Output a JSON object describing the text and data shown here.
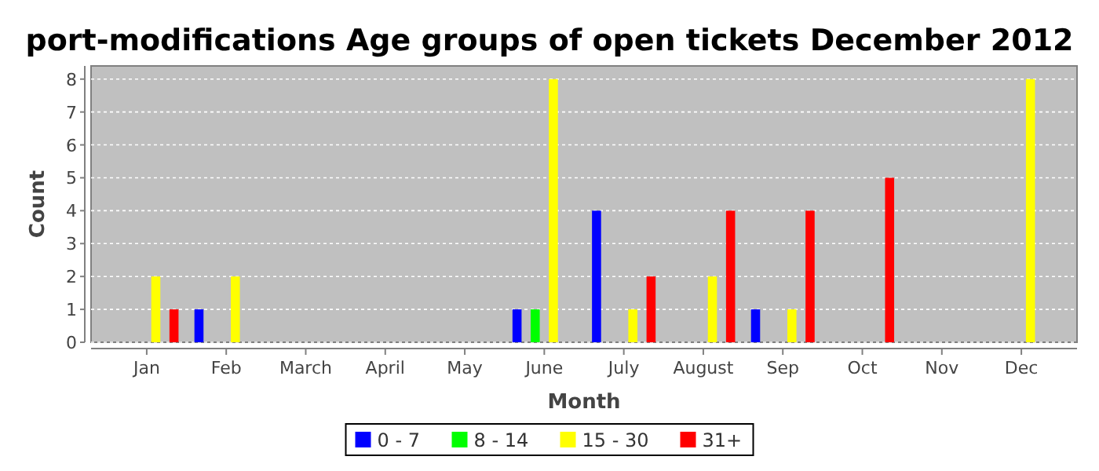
{
  "chart_data": {
    "type": "bar",
    "title": "port-modifications Age groups of open tickets December 2012",
    "xlabel": "Month",
    "ylabel": "Count",
    "categories": [
      "Jan",
      "Feb",
      "March",
      "April",
      "May",
      "June",
      "July",
      "August",
      "Sep",
      "Oct",
      "Nov",
      "Dec"
    ],
    "series": [
      {
        "name": "0 - 7",
        "color": "#0000ff",
        "values": [
          0,
          1,
          0,
          0,
          0,
          1,
          4,
          0,
          1,
          0,
          0,
          0
        ]
      },
      {
        "name": "8 - 14",
        "color": "#00ff00",
        "values": [
          0,
          0,
          0,
          0,
          0,
          1,
          0,
          0,
          0,
          0,
          0,
          0
        ]
      },
      {
        "name": "15 - 30",
        "color": "#ffff00",
        "values": [
          2,
          2,
          0,
          0,
          0,
          8,
          1,
          2,
          1,
          0,
          0,
          8
        ]
      },
      {
        "name": "31+",
        "color": "#ff0000",
        "values": [
          1,
          0,
          0,
          0,
          0,
          0,
          2,
          4,
          4,
          5,
          0,
          0
        ]
      }
    ],
    "ylim": [
      0,
      8.4
    ],
    "yticks": [
      0,
      1,
      2,
      3,
      4,
      5,
      6,
      7,
      8
    ],
    "grid": "y",
    "legend": "bottom"
  }
}
